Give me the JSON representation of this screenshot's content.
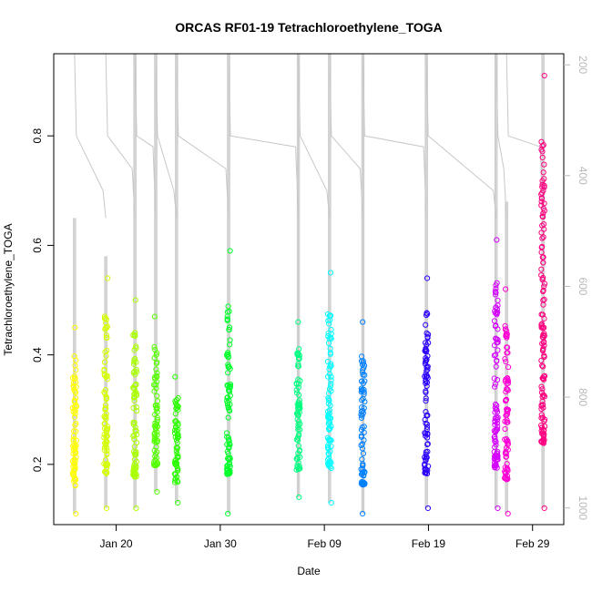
{
  "chart_data": {
    "type": "scatter",
    "title": "ORCAS RF01-19 Tetrachloroethylene_TOGA",
    "xlabel": "Date",
    "ylabel": "Tetrachloroethylene_TOGA",
    "xlim": [
      "2016-01-14",
      "2016-03-03"
    ],
    "ylim": [
      0.09,
      0.95
    ],
    "y2lim": [
      180,
      1030
    ],
    "y2_reversed": true,
    "x_ticks": [
      {
        "date": "2016-01-20",
        "label": "Jan 20"
      },
      {
        "date": "2016-01-30",
        "label": "Jan 30"
      },
      {
        "date": "2016-02-09",
        "label": "Feb 09"
      },
      {
        "date": "2016-02-19",
        "label": "Feb 19"
      },
      {
        "date": "2016-02-29",
        "label": "Feb 29"
      }
    ],
    "y_ticks": [
      0.2,
      0.4,
      0.6,
      0.8
    ],
    "y2_ticks": [
      200,
      400,
      600,
      800,
      1000
    ],
    "grid": false,
    "flights": [
      {
        "date": "2016-01-16.0",
        "color": "#FFFF00",
        "min": 0.11,
        "max": 0.45,
        "top": 0.65
      },
      {
        "date": "2016-01-19.0",
        "color": "#D5FF00",
        "min": 0.12,
        "max": 0.54,
        "top": 0.58
      },
      {
        "date": "2016-01-21.8",
        "color": "#AAFF00",
        "min": 0.12,
        "max": 0.5,
        "top": 0.95
      },
      {
        "date": "2016-01-23.8",
        "color": "#55FF00",
        "min": 0.15,
        "max": 0.47,
        "top": 0.95
      },
      {
        "date": "2016-01-25.8",
        "color": "#2BFF00",
        "min": 0.13,
        "max": 0.36,
        "top": 0.95
      },
      {
        "date": "2016-01-30.8",
        "color": "#00FF2B",
        "min": 0.11,
        "max": 0.59,
        "top": 0.95
      },
      {
        "date": "2016-02-06.5",
        "color": "#00FF80",
        "min": 0.14,
        "max": 0.46,
        "top": 0.95
      },
      {
        "date": "2016-02-09.5",
        "color": "#00FFFF",
        "min": 0.13,
        "max": 0.55,
        "top": 0.95
      },
      {
        "date": "2016-02-12.7",
        "color": "#0080FF",
        "min": 0.11,
        "max": 0.46,
        "top": 0.95
      },
      {
        "date": "2016-02-18.8",
        "color": "#2B00FF",
        "min": 0.12,
        "max": 0.54,
        "top": 0.95
      },
      {
        "date": "2016-02-25.5",
        "color": "#D500FF",
        "min": 0.12,
        "max": 0.61,
        "top": 0.95
      },
      {
        "date": "2016-02-26.5",
        "color": "#FF00D5",
        "min": 0.11,
        "max": 0.52,
        "top": 0.68
      },
      {
        "date": "2016-03-01.0",
        "color": "#FF0080",
        "min": 0.12,
        "max": 0.91,
        "top": 0.95
      }
    ],
    "background_trace_color": "#c8c8c8"
  }
}
